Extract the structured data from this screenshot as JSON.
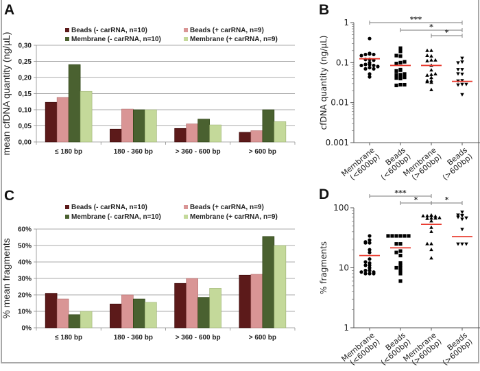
{
  "figure": {
    "panel_letters": [
      "A",
      "B",
      "C",
      "D"
    ]
  },
  "chart_data": [
    {
      "id": "A",
      "type": "bar",
      "title": "",
      "xlabel": "",
      "ylabel": "mean cfDNA quantity (ng/µL)",
      "ylim": [
        0,
        0.3
      ],
      "yticks": [
        0,
        0.05,
        0.1,
        0.15,
        0.2,
        0.25,
        0.3
      ],
      "ytick_labels": [
        "0,00",
        "0,05",
        "0,10",
        "0,15",
        "0,20",
        "0,25",
        "0,30"
      ],
      "grid": true,
      "legend_position": "top",
      "categories": [
        "≤ 180 bp",
        "180 - 360 bp",
        "> 360 - 600 bp",
        "> 600 bp"
      ],
      "series": [
        {
          "name": "Beads (- carRNA, n=10)",
          "color": "#5c1a1a",
          "values": [
            0.123,
            0.04,
            0.042,
            0.03
          ]
        },
        {
          "name": "Beads (+ carRNA, n=9)",
          "color": "#d99595",
          "values": [
            0.138,
            0.102,
            0.056,
            0.035
          ]
        },
        {
          "name": "Membrane (- carRNA, n=10)",
          "color": "#4a6130",
          "values": [
            0.24,
            0.1,
            0.071,
            0.1
          ]
        },
        {
          "name": "Membrane (+ carRNA, n=9)",
          "color": "#c4d99a",
          "values": [
            0.157,
            0.1,
            0.053,
            0.063
          ]
        }
      ]
    },
    {
      "id": "B",
      "type": "scatter",
      "yscale": "log",
      "ylabel": "cfDNA quantity (ng/µL)",
      "ylim": [
        0.001,
        1
      ],
      "yticks": [
        0.001,
        0.01,
        0.1,
        1
      ],
      "ytick_labels": [
        "0.001",
        "0.01",
        "0.1",
        "1"
      ],
      "categories": [
        "Membrane\n(<600bp)",
        "Beads\n(<600bp)",
        "Membrane\n(>600bp)",
        "Beads\n(>600bp)"
      ],
      "markers": [
        "circle",
        "square",
        "triangle-up",
        "triangle-down"
      ],
      "median_color": "#e8382c",
      "medians": [
        0.125,
        0.085,
        0.085,
        0.034
      ],
      "points": [
        [
          0.4,
          0.165,
          0.16,
          0.16,
          0.17,
          0.15,
          0.12,
          0.12,
          0.115,
          0.1,
          0.09,
          0.09,
          0.085,
          0.085,
          0.08,
          0.075,
          0.07,
          0.07,
          0.052,
          0.044
        ],
        [
          0.23,
          0.19,
          0.145,
          0.15,
          0.1,
          0.095,
          0.105,
          0.065,
          0.062,
          0.067,
          0.05,
          0.05,
          0.052,
          0.042,
          0.04,
          0.041,
          0.043,
          0.028,
          0.027,
          0.028
        ],
        [
          0.2,
          0.2,
          0.145,
          0.15,
          0.115,
          0.11,
          0.115,
          0.085,
          0.065,
          0.05,
          0.048,
          0.052,
          0.042,
          0.035,
          0.035,
          0.032,
          0.033,
          0.021
        ],
        [
          0.13,
          0.105,
          0.1,
          0.068,
          0.068,
          0.052,
          0.053,
          0.036,
          0.035,
          0.029,
          0.028,
          0.029,
          0.016
        ]
      ],
      "significance": [
        {
          "from": 0,
          "to": 3,
          "label": "***"
        },
        {
          "from": 1,
          "to": 3,
          "label": "*"
        },
        {
          "from": 2,
          "to": 3,
          "label": "*"
        }
      ]
    },
    {
      "id": "C",
      "type": "bar",
      "title": "",
      "xlabel": "",
      "ylabel": "% mean fragments",
      "ylim": [
        0,
        60
      ],
      "yticks": [
        0,
        10,
        20,
        30,
        40,
        50,
        60
      ],
      "ytick_labels": [
        "0%",
        "10%",
        "20%",
        "30%",
        "40%",
        "50%",
        "60%"
      ],
      "grid": true,
      "legend_position": "top",
      "categories": [
        "≤ 180 bp",
        "180 - 360 bp",
        "> 360 - 600 bp",
        "> 600 bp"
      ],
      "series": [
        {
          "name": "Beads (- carRNA, n=10)",
          "color": "#5c1a1a",
          "values": [
            21,
            14.5,
            27,
            32
          ]
        },
        {
          "name": "Beads (+ carRNA, n=9)",
          "color": "#d99595",
          "values": [
            17.5,
            20,
            30,
            32.5
          ]
        },
        {
          "name": "Membrane (- carRNA, n=10)",
          "color": "#4a6130",
          "values": [
            8,
            17.5,
            18.5,
            55.5
          ]
        },
        {
          "name": "Membrane (+ carRNA, n=9)",
          "color": "#c4d99a",
          "values": [
            10,
            15.5,
            24,
            50
          ]
        }
      ]
    },
    {
      "id": "D",
      "type": "scatter",
      "yscale": "log",
      "ylabel": "% fragments",
      "ylim": [
        1,
        100
      ],
      "yticks": [
        1,
        10,
        100
      ],
      "ytick_labels": [
        "1",
        "10",
        "100"
      ],
      "categories": [
        "Membrane\n(<600bp)",
        "Beads\n(<600bp)",
        "Membrane\n(>600bp)",
        "Beads\n(>600bp)"
      ],
      "markers": [
        "circle",
        "square",
        "triangle-up",
        "triangle-down"
      ],
      "median_color": "#e8382c",
      "medians": [
        16,
        21.5,
        53,
        33
      ],
      "points": [
        [
          34,
          29,
          27,
          26,
          26,
          20,
          18,
          14,
          12,
          12.5,
          11,
          11,
          10,
          9,
          9,
          8.5,
          8.5,
          8,
          8,
          8
        ],
        [
          34,
          34,
          34,
          34,
          34,
          34,
          25,
          25,
          19,
          18,
          16,
          12,
          11,
          10,
          10,
          9,
          8,
          6
        ],
        [
          75,
          74,
          73,
          72,
          73,
          68,
          67,
          66,
          67,
          60,
          47,
          40,
          25,
          25,
          20,
          14.5
        ],
        [
          85,
          75,
          74,
          76,
          70,
          65,
          68,
          44,
          25,
          25,
          25
        ]
      ],
      "significance": [
        {
          "from": 0,
          "to": 2,
          "label": "***"
        },
        {
          "from": 1,
          "to": 2,
          "label": "*"
        },
        {
          "from": 2,
          "to": 3,
          "label": "*"
        }
      ]
    }
  ]
}
